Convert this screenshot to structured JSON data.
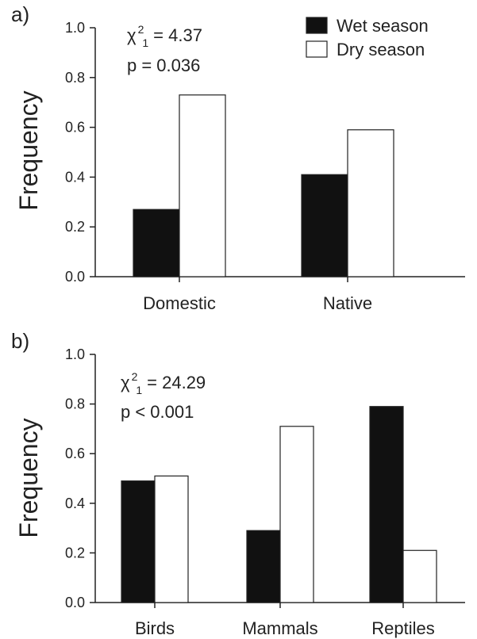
{
  "chart_data": [
    {
      "type": "bar",
      "panel_label": "a)",
      "categories": [
        "Domestic",
        "Native"
      ],
      "series": [
        {
          "name": "Wet season",
          "color": "#111111",
          "values": [
            0.27,
            0.41
          ]
        },
        {
          "name": "Dry season",
          "color": "#ffffff",
          "values": [
            0.73,
            0.59
          ]
        }
      ],
      "ylabel": "Frequency",
      "xlabel": "",
      "ylim": [
        0,
        1.0
      ],
      "yticks": [
        "0.0",
        "0.2",
        "0.4",
        "0.6",
        "0.8",
        "1.0"
      ],
      "stat": {
        "symbol": "χ",
        "sup": "2",
        "sub": "1",
        "value": "= 4.37",
        "p": "p = 0.036"
      },
      "legend": {
        "placement": "top-right"
      }
    },
    {
      "type": "bar",
      "panel_label": "b)",
      "categories": [
        "Birds",
        "Mammals",
        "Reptiles"
      ],
      "series": [
        {
          "name": "Wet season",
          "color": "#111111",
          "values": [
            0.49,
            0.29,
            0.79
          ]
        },
        {
          "name": "Dry season",
          "color": "#ffffff",
          "values": [
            0.51,
            0.71,
            0.21
          ]
        }
      ],
      "ylabel": "Frequency",
      "xlabel": "",
      "ylim": [
        0,
        1.0
      ],
      "yticks": [
        "0.0",
        "0.2",
        "0.4",
        "0.6",
        "0.8",
        "1.0"
      ],
      "stat": {
        "symbol": "χ",
        "sup": "2",
        "sub": "1",
        "value": "= 24.29",
        "p": "p < 0.001"
      }
    }
  ]
}
